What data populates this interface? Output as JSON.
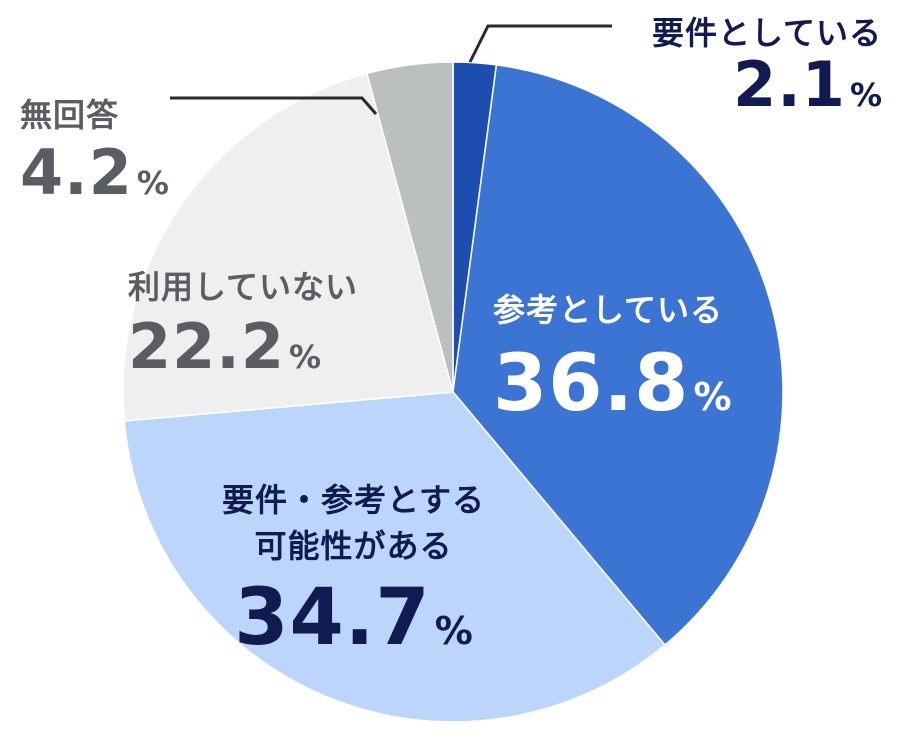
{
  "chart_data": {
    "type": "pie",
    "start": "top, clockwise",
    "slices": [
      {
        "name": "要件としている",
        "value": 2.1,
        "color": "#1d4eaf",
        "pct": "%"
      },
      {
        "name": "参考としている",
        "value": 36.8,
        "color": "#3b74d3",
        "pct": "%"
      },
      {
        "name": "要件・参考とする可能性がある",
        "name_lines": [
          "要件・参考とする",
          "可能性がある"
        ],
        "value": 34.7,
        "color": "#bcd6fb",
        "pct": "%"
      },
      {
        "name": "利用していない",
        "value": 22.2,
        "color": "#efefef",
        "pct": "%"
      },
      {
        "name": "無回答",
        "value": 4.2,
        "color": "#bcbfbf",
        "pct": "%"
      }
    ]
  }
}
